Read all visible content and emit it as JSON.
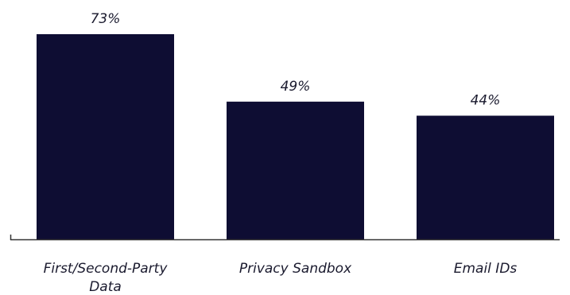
{
  "chart_data": {
    "type": "bar",
    "categories": [
      "First/Second-Party Data",
      "Privacy Sandbox",
      "Email IDs"
    ],
    "category_lines": [
      [
        "First/Second-Party",
        "Data"
      ],
      [
        "Privacy Sandbox"
      ],
      [
        "Email IDs"
      ]
    ],
    "values": [
      73,
      49,
      44
    ],
    "data_labels": [
      "73%",
      "49%",
      "44%"
    ],
    "title": "",
    "xlabel": "",
    "ylabel": "",
    "ylim": [
      0,
      73
    ],
    "grid": false,
    "legend": "none",
    "colors": {
      "bar": "#0e0d33",
      "axis": "#333333",
      "text": "#1a1a2e"
    }
  }
}
